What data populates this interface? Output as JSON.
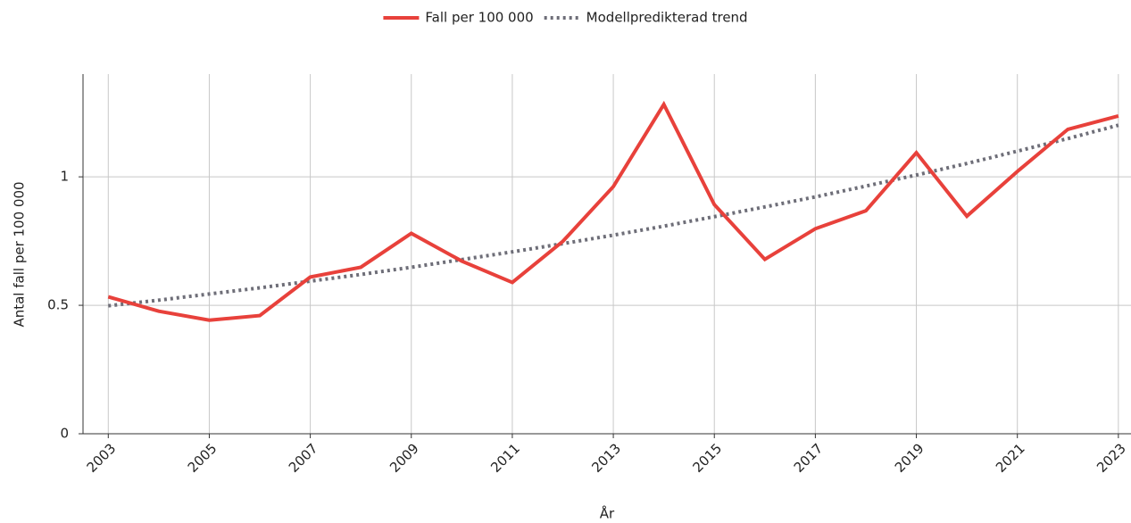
{
  "chart_data": {
    "type": "line",
    "x": [
      2003,
      2004,
      2005,
      2006,
      2007,
      2008,
      2009,
      2010,
      2011,
      2012,
      2013,
      2014,
      2015,
      2016,
      2017,
      2018,
      2019,
      2020,
      2021,
      2022,
      2023
    ],
    "series": [
      {
        "name": "Fall per 100 000",
        "color": "#e8413b",
        "style": "solid",
        "values": [
          0.533,
          0.477,
          0.442,
          0.46,
          0.61,
          0.648,
          0.78,
          0.672,
          0.589,
          0.749,
          0.962,
          1.282,
          0.892,
          0.679,
          0.798,
          0.868,
          1.094,
          0.847,
          1.021,
          1.185,
          1.237
        ]
      },
      {
        "name": "Modellpredikterad trend",
        "color": "#6e6e78",
        "style": "dotted",
        "values": [
          0.498,
          0.52,
          0.544,
          0.568,
          0.594,
          0.62,
          0.648,
          0.678,
          0.708,
          0.74,
          0.773,
          0.808,
          0.845,
          0.883,
          0.922,
          0.964,
          1.007,
          1.052,
          1.1,
          1.149,
          1.201
        ]
      }
    ],
    "xlabel": "År",
    "ylabel": "Antal fall per 100 000",
    "xlim": [
      2002.5,
      2023.25
    ],
    "xticks": [
      2003,
      2005,
      2007,
      2009,
      2011,
      2013,
      2015,
      2017,
      2019,
      2021,
      2023
    ],
    "ylim": [
      0,
      1.4
    ],
    "yticks": [
      0,
      0.5,
      1
    ],
    "grid": true,
    "legend": "top"
  }
}
